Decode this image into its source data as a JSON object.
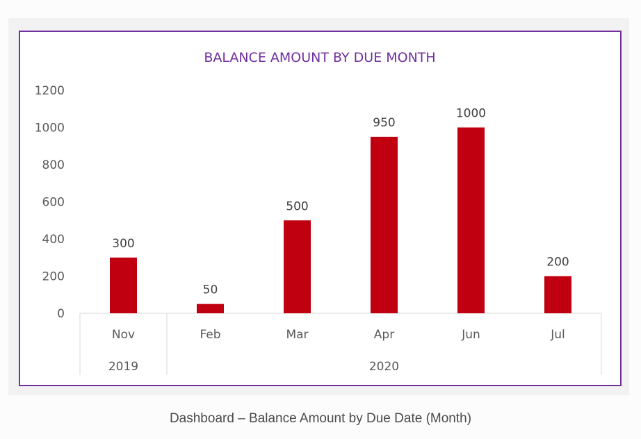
{
  "caption": "Dashboard – Balance Amount by Due Date (Month)",
  "colors": {
    "bar": "#c00010",
    "border": "#7030a0",
    "title": "#7030a0",
    "axis": "#d9d9d9",
    "frame": "#f2f2f2"
  },
  "chart_data": {
    "type": "bar",
    "title": "BALANCE AMOUNT BY DUE MONTH",
    "categories": [
      "Nov",
      "Feb",
      "Mar",
      "Apr",
      "Jun",
      "Jul"
    ],
    "category_groups": [
      {
        "label": "2019",
        "span": 1
      },
      {
        "label": "2020",
        "span": 5
      }
    ],
    "values": [
      300,
      50,
      500,
      950,
      1000,
      200
    ],
    "data_labels": [
      "300",
      "50",
      "500",
      "950",
      "1000",
      "200"
    ],
    "yticks": [
      "0",
      "200",
      "400",
      "600",
      "800",
      "1000",
      "1200"
    ],
    "ylim": [
      0,
      1200
    ],
    "grid": false,
    "legend": "none"
  }
}
